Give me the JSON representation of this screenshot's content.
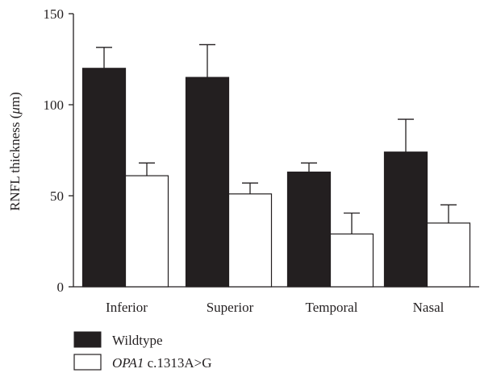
{
  "chart_data": {
    "type": "bar",
    "ylabel": "RNFL thickness (μm)",
    "ylim": [
      0,
      150
    ],
    "yticks": [
      0,
      50,
      100,
      150
    ],
    "grid": false,
    "legend_placement": "bottom-left",
    "categories": [
      "Inferior",
      "Superior",
      "Temporal",
      "Nasal"
    ],
    "series": [
      {
        "name": "Wildtype",
        "color": "#231f20",
        "values": [
          120,
          115,
          63,
          74
        ],
        "error": [
          11.5,
          18,
          5,
          18
        ]
      },
      {
        "name": "OPA1 c.1313A>G",
        "name_italic": "OPA1",
        "name_rest": " c.1313A>G",
        "color": "#ffffff",
        "values": [
          61,
          51,
          29,
          35
        ],
        "error": [
          7,
          6,
          11.5,
          10
        ]
      }
    ]
  }
}
